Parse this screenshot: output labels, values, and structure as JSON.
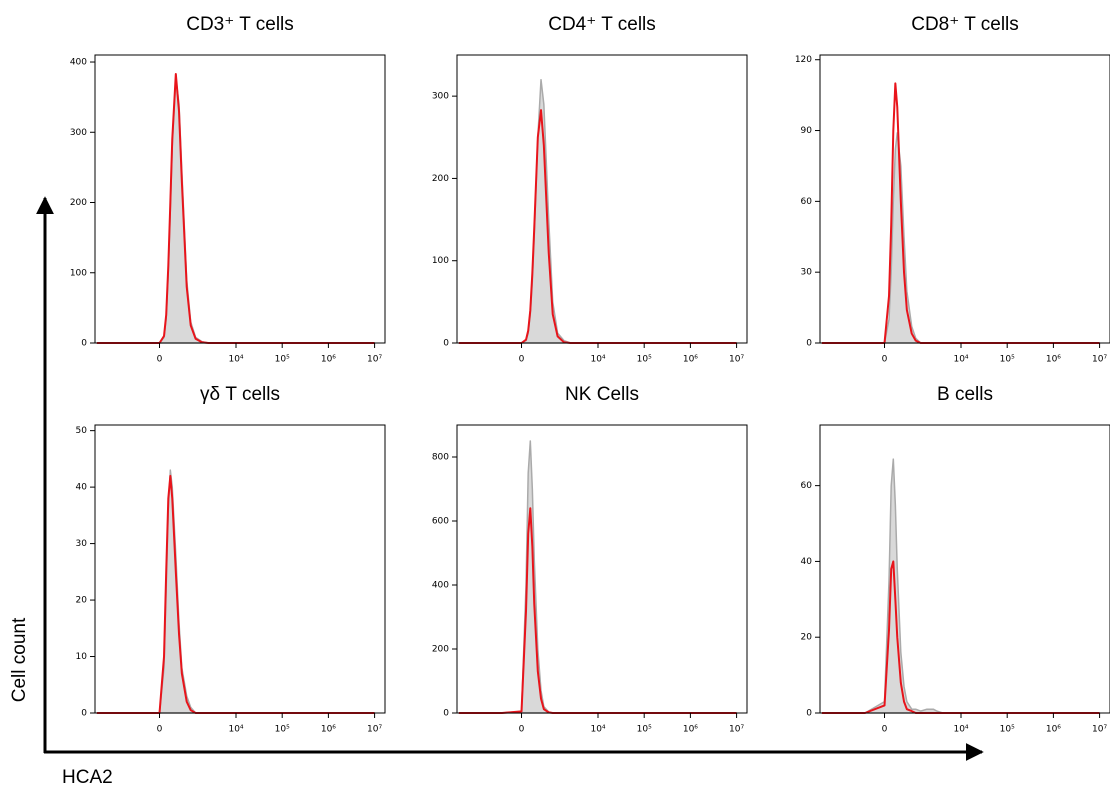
{
  "axis_labels": {
    "y": "Cell count",
    "x": "HCA2"
  },
  "chart_data": [
    {
      "type": "histogram",
      "title": "CD3⁺ T cells",
      "xscale": "biexponential",
      "x": [
        -5000,
        -500,
        0,
        100,
        150,
        200,
        250,
        300,
        400,
        500,
        600,
        800,
        1000,
        1300,
        1800,
        2500,
        3000,
        4000,
        10000,
        10000000
      ],
      "series": [
        {
          "color": "#aaaaaa",
          "fill": "#d9d9d9",
          "values": [
            0,
            0,
            0,
            8,
            35,
            100,
            190,
            280,
            378,
            340,
            245,
            90,
            30,
            8,
            2,
            0,
            0,
            0,
            0,
            0
          ]
        },
        {
          "color": "#e8141b",
          "values": [
            0,
            0,
            0,
            10,
            40,
            110,
            200,
            290,
            383,
            330,
            230,
            80,
            25,
            6,
            1,
            0,
            0,
            0,
            0,
            0
          ]
        }
      ],
      "xlim": [
        -5500,
        16800000
      ],
      "xticks": [
        0,
        {
          "value": 10000,
          "label": "10⁴"
        },
        {
          "value": 100000,
          "label": "10⁵"
        },
        {
          "value": 1000000,
          "label": "10⁶"
        },
        {
          "value": 10000000,
          "label": "10⁷"
        }
      ],
      "ylim": [
        0,
        410
      ],
      "yticks": [
        0,
        100,
        200,
        300,
        400
      ]
    },
    {
      "type": "histogram",
      "title": "CD4⁺ T cells",
      "xscale": "biexponential",
      "x": [
        -5000,
        -500,
        0,
        100,
        150,
        200,
        250,
        300,
        400,
        500,
        600,
        800,
        1000,
        1300,
        1800,
        2500,
        3000,
        4000,
        10000,
        10000000
      ],
      "series": [
        {
          "color": "#aaaaaa",
          "fill": "#d9d9d9",
          "values": [
            0,
            0,
            0,
            3,
            12,
            35,
            75,
            130,
            250,
            320,
            290,
            150,
            50,
            12,
            3,
            0,
            0,
            0,
            0,
            0
          ]
        },
        {
          "color": "#e8141b",
          "values": [
            0,
            0,
            0,
            4,
            15,
            40,
            85,
            140,
            250,
            283,
            240,
            110,
            35,
            8,
            1,
            0,
            0,
            0,
            0,
            0
          ]
        }
      ],
      "xlim": [
        -5500,
        16800000
      ],
      "xticks": [
        0,
        {
          "value": 10000,
          "label": "10⁴"
        },
        {
          "value": 100000,
          "label": "10⁵"
        },
        {
          "value": 1000000,
          "label": "10⁶"
        },
        {
          "value": 10000000,
          "label": "10⁷"
        }
      ],
      "ylim": [
        0,
        350
      ],
      "yticks": [
        0,
        100,
        200,
        300
      ]
    },
    {
      "type": "histogram",
      "title": "CD8⁺ T cells",
      "xscale": "biexponential",
      "x": [
        -5000,
        -500,
        0,
        100,
        150,
        200,
        250,
        300,
        400,
        500,
        600,
        800,
        1000,
        1300,
        1800,
        2500,
        3000,
        4000,
        10000,
        10000000
      ],
      "series": [
        {
          "color": "#aaaaaa",
          "fill": "#d9d9d9",
          "values": [
            0,
            0,
            0,
            10,
            30,
            60,
            82,
            89,
            75,
            45,
            22,
            7,
            2,
            0,
            0,
            0,
            0,
            0,
            0,
            0
          ]
        },
        {
          "color": "#e8141b",
          "values": [
            0,
            0,
            0,
            20,
            50,
            90,
            110,
            100,
            60,
            30,
            14,
            4,
            1,
            0,
            0,
            0,
            0,
            0,
            0,
            0
          ]
        }
      ],
      "xlim": [
        -5500,
        16800000
      ],
      "xticks": [
        0,
        {
          "value": 10000,
          "label": "10⁴"
        },
        {
          "value": 100000,
          "label": "10⁵"
        },
        {
          "value": 1000000,
          "label": "10⁶"
        },
        {
          "value": 10000000,
          "label": "10⁷"
        }
      ],
      "ylim": [
        0,
        122
      ],
      "yticks": [
        0,
        30,
        60,
        90,
        120
      ]
    },
    {
      "type": "histogram",
      "title": "γδ T cells",
      "xscale": "biexponential",
      "x": [
        -5000,
        -500,
        0,
        100,
        150,
        200,
        250,
        300,
        400,
        500,
        600,
        800,
        1000,
        1300,
        1800,
        2500,
        3000,
        4000,
        10000,
        10000000
      ],
      "series": [
        {
          "color": "#aaaaaa",
          "fill": "#d9d9d9",
          "values": [
            0,
            0,
            0,
            8,
            22,
            36,
            43,
            40,
            28,
            16,
            8,
            3,
            1,
            0,
            0,
            0,
            0,
            0,
            0,
            0
          ]
        },
        {
          "color": "#e8141b",
          "values": [
            0,
            0,
            0,
            10,
            25,
            38,
            42,
            38,
            25,
            14,
            7,
            2,
            0.5,
            0,
            0,
            0,
            0,
            0,
            0,
            0
          ]
        }
      ],
      "xlim": [
        -5500,
        16800000
      ],
      "xticks": [
        0,
        {
          "value": 10000,
          "label": "10⁴"
        },
        {
          "value": 100000,
          "label": "10⁵"
        },
        {
          "value": 1000000,
          "label": "10⁶"
        },
        {
          "value": 10000000,
          "label": "10⁷"
        }
      ],
      "ylim": [
        0,
        51
      ],
      "yticks": [
        0,
        10,
        20,
        30,
        40,
        50
      ]
    },
    {
      "type": "histogram",
      "title": "NK Cells",
      "xscale": "biexponential",
      "x": [
        -5000,
        -500,
        0,
        100,
        150,
        200,
        250,
        300,
        400,
        500,
        600,
        800,
        1000,
        1300,
        1800,
        2500,
        3000,
        4000,
        10000,
        10000000
      ],
      "series": [
        {
          "color": "#aaaaaa",
          "fill": "#d9d9d9",
          "values": [
            0,
            0,
            5,
            400,
            750,
            850,
            700,
            480,
            200,
            70,
            20,
            3,
            0,
            0,
            0,
            0,
            0,
            0,
            0,
            0
          ]
        },
        {
          "color": "#e8141b",
          "values": [
            0,
            0,
            5,
            320,
            560,
            640,
            520,
            340,
            130,
            45,
            12,
            2,
            0,
            0,
            0,
            0,
            0,
            0,
            0,
            0
          ]
        }
      ],
      "xlim": [
        -5500,
        16800000
      ],
      "xticks": [
        0,
        {
          "value": 10000,
          "label": "10⁴"
        },
        {
          "value": 100000,
          "label": "10⁵"
        },
        {
          "value": 1000000,
          "label": "10⁶"
        },
        {
          "value": 10000000,
          "label": "10⁷"
        }
      ],
      "ylim": [
        0,
        900
      ],
      "yticks": [
        0,
        200,
        400,
        600,
        800
      ]
    },
    {
      "type": "histogram",
      "title": "B cells",
      "xscale": "biexponential",
      "x": [
        -5000,
        -500,
        0,
        100,
        150,
        200,
        250,
        300,
        400,
        500,
        600,
        800,
        1000,
        1300,
        1800,
        2500,
        3000,
        4000,
        10000,
        10000000
      ],
      "series": [
        {
          "color": "#aaaaaa",
          "fill": "#d9d9d9",
          "values": [
            0,
            0,
            3,
            35,
            60,
            67,
            55,
            38,
            16,
            7,
            3,
            1,
            1,
            0.5,
            1,
            1,
            0.5,
            0,
            0,
            0
          ]
        },
        {
          "color": "#e8141b",
          "values": [
            0,
            0,
            2,
            22,
            38,
            40,
            30,
            20,
            8,
            3,
            1,
            0.5,
            0,
            0,
            0,
            0,
            0,
            0,
            0,
            0
          ]
        }
      ],
      "xlim": [
        -5500,
        16800000
      ],
      "xticks": [
        0,
        {
          "value": 10000,
          "label": "10⁴"
        },
        {
          "value": 100000,
          "label": "10⁵"
        },
        {
          "value": 1000000,
          "label": "10⁶"
        },
        {
          "value": 10000000,
          "label": "10⁷"
        }
      ],
      "ylim": [
        0,
        76
      ],
      "yticks": [
        0,
        20,
        40,
        60
      ]
    }
  ]
}
